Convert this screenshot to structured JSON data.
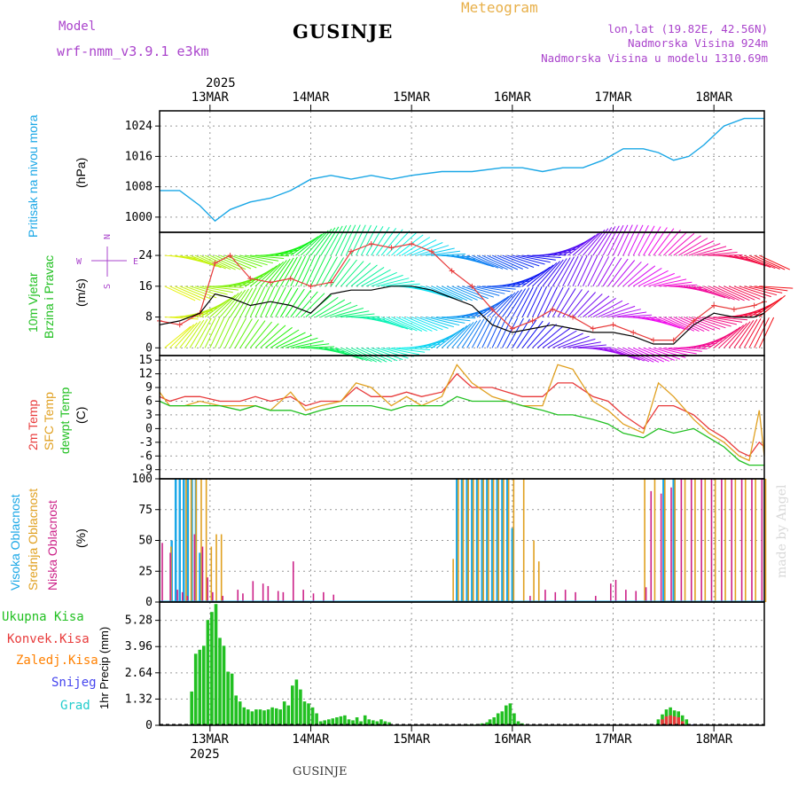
{
  "header": {
    "model_label": "Model",
    "model_name": "wrf-nmm_v3.9.1  e3km",
    "station": "GUSINJE",
    "product": "Meteogram",
    "coords": "lon,lat (19.82E, 42.56N)",
    "elevation": "Nadmorska Visina 924m",
    "model_elevation": "Nadmorska Visina u modelu 1310.69m",
    "year_top": "2025",
    "year_bottom": "2025",
    "footer_station": "GUSINJE",
    "watermark": "made by Angel"
  },
  "colors": {
    "pressure": "#1aa7e6",
    "wind_speed": "#e83b3b",
    "wind_mean": "#000000",
    "t2m": "#e83b3b",
    "tsfc": "#e0a020",
    "dewpt": "#22c022",
    "high_cloud": "#1aa7e6",
    "mid_cloud": "#e0a020",
    "low_cloud": "#cc2288",
    "total_precip": "#22c022",
    "conv_precip": "#e83b3b",
    "frozen_precip": "#ff8000",
    "snow": "#4444ee",
    "hail": "#22cccc",
    "grid": "#999999"
  },
  "chart_data": [
    {
      "id": "pressure",
      "type": "line",
      "title": "Pritisak na nivou mora",
      "ylabel": "(hPa)",
      "ylim": [
        996,
        1028
      ],
      "yticks": [
        1000,
        1008,
        1016,
        1024
      ],
      "x_unit": "day of March 2025",
      "x": [
        12.5,
        12.7,
        12.9,
        13.05,
        13.2,
        13.4,
        13.6,
        13.8,
        14.0,
        14.2,
        14.4,
        14.6,
        14.8,
        15.0,
        15.3,
        15.6,
        15.9,
        16.1,
        16.3,
        16.5,
        16.7,
        16.9,
        17.1,
        17.3,
        17.45,
        17.6,
        17.75,
        17.9,
        18.1,
        18.3,
        18.5
      ],
      "values": [
        1007,
        1007,
        1003,
        999,
        1002,
        1004,
        1005,
        1007,
        1010,
        1011,
        1010,
        1011,
        1010,
        1011,
        1012,
        1012,
        1013,
        1013,
        1012,
        1013,
        1013,
        1015,
        1018,
        1018,
        1017,
        1015,
        1016,
        1019,
        1024,
        1026,
        1026
      ]
    },
    {
      "id": "wind",
      "type": "line",
      "title": "10m Vjetar",
      "subtitle": "Brzina i Pravac",
      "ylabel": "(m/s)",
      "ylim": [
        -2,
        30
      ],
      "yticks": [
        0,
        8,
        16,
        24
      ],
      "compass": {
        "n": "N",
        "w": "W",
        "e": "E",
        "s": "S"
      },
      "x": [
        12.5,
        12.7,
        12.9,
        13.05,
        13.2,
        13.4,
        13.6,
        13.8,
        14.0,
        14.2,
        14.4,
        14.6,
        14.8,
        15.0,
        15.2,
        15.4,
        15.6,
        15.8,
        16.0,
        16.2,
        16.4,
        16.6,
        16.8,
        17.0,
        17.2,
        17.4,
        17.6,
        17.8,
        18.0,
        18.2,
        18.4,
        18.5
      ],
      "series": [
        {
          "name": "gust",
          "values": [
            7,
            6,
            9,
            22,
            24,
            18,
            17,
            18,
            16,
            17,
            25,
            27,
            26,
            27,
            25,
            20,
            16,
            10,
            5,
            7,
            10,
            8,
            5,
            6,
            4,
            2,
            2,
            7,
            11,
            10,
            11,
            12
          ]
        },
        {
          "name": "mean",
          "values": [
            6,
            7,
            9,
            14,
            13,
            11,
            12,
            11,
            9,
            14,
            15,
            15,
            16,
            16,
            15,
            13,
            11,
            6,
            4,
            5,
            6,
            5,
            4,
            4,
            3,
            1,
            1,
            6,
            9,
            8,
            8,
            9
          ]
        }
      ]
    },
    {
      "id": "temperature",
      "type": "line",
      "title": "2m Temp",
      "ylabel": "(C)",
      "ylim": [
        -11,
        16
      ],
      "yticks": [
        -9,
        -6,
        -3,
        0,
        3,
        6,
        9,
        12,
        15
      ],
      "x": [
        12.5,
        12.6,
        12.75,
        12.9,
        13.1,
        13.3,
        13.45,
        13.6,
        13.8,
        13.95,
        14.1,
        14.3,
        14.45,
        14.6,
        14.8,
        14.95,
        15.1,
        15.3,
        15.45,
        15.6,
        15.8,
        15.95,
        16.1,
        16.3,
        16.45,
        16.6,
        16.8,
        16.95,
        17.1,
        17.3,
        17.45,
        17.6,
        17.8,
        17.95,
        18.1,
        18.25,
        18.35,
        18.45,
        18.5
      ],
      "series": [
        {
          "name": "2m Temp",
          "values": [
            7,
            6,
            7,
            7,
            6,
            6,
            7,
            6,
            7,
            5,
            6,
            6,
            9,
            7,
            7,
            8,
            7,
            8,
            12,
            9,
            9,
            8,
            7,
            7,
            10,
            10,
            7,
            6,
            3,
            0,
            5,
            5,
            3,
            0,
            -2,
            -5,
            -6,
            -3,
            -4
          ]
        },
        {
          "name": "SFC Temp",
          "values": [
            8,
            5,
            5,
            6,
            5,
            5,
            5,
            4,
            8,
            4,
            5,
            6,
            10,
            9,
            5,
            7,
            5,
            7,
            14,
            10,
            7,
            6,
            5,
            5,
            14,
            13,
            6,
            4,
            1,
            -1,
            10,
            7,
            2,
            -1,
            -3,
            -6,
            -7,
            4,
            -6
          ]
        },
        {
          "name": "dewpt Temp",
          "values": [
            6,
            5,
            5,
            5,
            5,
            4,
            5,
            4,
            4,
            3,
            4,
            5,
            5,
            5,
            4,
            5,
            5,
            5,
            7,
            6,
            6,
            6,
            5,
            4,
            3,
            3,
            2,
            1,
            -1,
            -2,
            0,
            -1,
            0,
            -2,
            -4,
            -7,
            -8,
            -8,
            -8
          ]
        }
      ]
    },
    {
      "id": "clouds",
      "type": "bar",
      "title": "Oblacnost",
      "titles": [
        "Visoka Oblacnost",
        "Srednja Oblacnost",
        "Niska Oblacnost"
      ],
      "ylabel": "(%)",
      "ylim": [
        0,
        100
      ],
      "yticks": [
        0,
        25,
        50,
        75,
        100
      ],
      "series": [
        {
          "name": "Visoka",
          "x": [
            12.62,
            12.66,
            12.7,
            12.74,
            12.78,
            12.82,
            12.86,
            12.9,
            15.45,
            15.5,
            15.55,
            15.6,
            15.65,
            15.7,
            15.75,
            15.8,
            15.85,
            15.9,
            15.95,
            16.0,
            17.5,
            17.6
          ],
          "values": [
            50,
            100,
            100,
            100,
            100,
            100,
            100,
            40,
            100,
            100,
            100,
            100,
            100,
            100,
            100,
            100,
            100,
            100,
            100,
            60,
            100,
            100
          ]
        },
        {
          "name": "Srednja",
          "x": [
            12.6,
            12.75,
            12.8,
            12.85,
            12.9,
            12.95,
            13.0,
            13.05,
            13.1,
            15.4,
            15.45,
            15.5,
            15.55,
            15.6,
            15.65,
            15.7,
            15.75,
            15.8,
            15.85,
            15.9,
            15.95,
            16.0,
            16.1,
            16.2,
            16.25,
            17.3,
            17.4,
            17.5,
            17.6,
            17.7,
            17.8,
            17.9,
            18.0,
            18.1,
            18.2,
            18.3,
            18.4,
            18.5
          ],
          "values": [
            45,
            100,
            100,
            100,
            100,
            100,
            45,
            55,
            55,
            35,
            100,
            100,
            100,
            100,
            100,
            100,
            100,
            100,
            100,
            100,
            100,
            100,
            100,
            50,
            33,
            100,
            100,
            100,
            100,
            100,
            100,
            100,
            100,
            100,
            100,
            100,
            100,
            100
          ]
        },
        {
          "name": "Niska",
          "x": [
            12.5,
            12.58,
            12.65,
            12.7,
            12.75,
            12.82,
            12.9,
            12.95,
            13.0,
            13.1,
            13.25,
            13.3,
            13.4,
            13.5,
            13.55,
            13.65,
            13.7,
            13.8,
            13.9,
            14.0,
            14.1,
            14.2,
            16.15,
            16.3,
            16.4,
            16.5,
            16.6,
            16.8,
            16.95,
            17.0,
            17.1,
            17.2,
            17.3,
            17.35,
            17.45,
            17.55,
            17.65,
            17.75,
            17.85,
            17.95,
            18.05,
            18.15,
            18.25,
            18.35,
            18.45
          ],
          "values": [
            48,
            40,
            10,
            8,
            5,
            55,
            45,
            20,
            8,
            5,
            10,
            7,
            17,
            15,
            13,
            9,
            8,
            33,
            10,
            7,
            8,
            6,
            5,
            10,
            8,
            10,
            8,
            5,
            15,
            18,
            10,
            9,
            12,
            90,
            88,
            93,
            100,
            100,
            100,
            100,
            100,
            100,
            100,
            100,
            100
          ]
        }
      ]
    },
    {
      "id": "precip",
      "type": "bar",
      "title": "1hr Precip",
      "ylabel": "1hr Precip (mm)",
      "ylim": [
        0,
        6.2
      ],
      "yticks": [
        0,
        1.32,
        2.64,
        3.96,
        5.28
      ],
      "ytick_labels": [
        "0",
        "1.32",
        "2.64",
        "3.96",
        "5.28"
      ],
      "legend": [
        "Ukupna Kisa",
        "Konvek.Kisa",
        "Zaledj.Kisa",
        "Snijeg",
        "Grad"
      ],
      "series": [
        {
          "name": "Ukupna Kisa",
          "x": [
            12.82,
            12.86,
            12.9,
            12.94,
            12.98,
            13.02,
            13.06,
            13.1,
            13.14,
            13.18,
            13.22,
            13.26,
            13.3,
            13.34,
            13.38,
            13.42,
            13.46,
            13.5,
            13.54,
            13.58,
            13.62,
            13.66,
            13.7,
            13.74,
            13.78,
            13.82,
            13.86,
            13.9,
            13.94,
            13.98,
            14.02,
            14.06,
            14.1,
            14.14,
            14.18,
            14.22,
            14.26,
            14.3,
            14.34,
            14.38,
            14.42,
            14.46,
            14.5,
            14.54,
            14.58,
            14.62,
            14.66,
            14.7,
            14.74,
            14.78,
            15.55,
            15.6,
            15.65,
            15.7,
            15.75,
            15.78,
            15.82,
            15.86,
            15.9,
            15.94,
            15.98,
            16.02,
            16.06,
            16.1,
            17.45,
            17.49,
            17.53,
            17.57,
            17.61,
            17.65,
            17.69,
            17.73
          ],
          "values": [
            1.7,
            3.6,
            3.8,
            4.0,
            5.3,
            5.7,
            6.1,
            4.4,
            4.0,
            2.7,
            2.6,
            1.5,
            1.2,
            0.9,
            0.8,
            0.7,
            0.8,
            0.8,
            0.75,
            0.8,
            0.9,
            0.85,
            0.8,
            1.2,
            1.0,
            2.0,
            2.3,
            1.8,
            1.2,
            1.1,
            0.9,
            0.6,
            0.2,
            0.25,
            0.3,
            0.35,
            0.4,
            0.45,
            0.5,
            0.3,
            0.25,
            0.4,
            0.2,
            0.5,
            0.3,
            0.25,
            0.2,
            0.3,
            0.2,
            0.15,
            0.05,
            0.05,
            0.05,
            0.1,
            0.15,
            0.3,
            0.4,
            0.6,
            0.7,
            1.0,
            1.1,
            0.6,
            0.2,
            0.1,
            0.3,
            0.55,
            0.8,
            0.9,
            0.75,
            0.7,
            0.5,
            0.3
          ]
        },
        {
          "name": "Konvek.Kisa",
          "x": [
            17.49,
            17.53,
            17.57,
            17.61,
            17.65,
            17.69
          ],
          "values": [
            0.3,
            0.45,
            0.5,
            0.45,
            0.4,
            0.2
          ]
        },
        {
          "name": "Snijeg",
          "x": [
            17.75,
            17.8,
            17.9,
            18.0
          ],
          "values": [
            0.05,
            0.05,
            0.03,
            0.02
          ]
        }
      ]
    }
  ],
  "xaxis": {
    "start": 12.5,
    "end": 18.5,
    "days": [
      13,
      14,
      15,
      16,
      17,
      18
    ],
    "labels": [
      "13MAR",
      "14MAR",
      "15MAR",
      "16MAR",
      "17MAR",
      "18MAR"
    ]
  },
  "legends": {
    "wind_title": "10m Vjetar",
    "wind_sub": "Brzina i Pravac",
    "t2m": "2m Temp",
    "tsfc": "SFC Temp",
    "dewpt": "dewpt Temp",
    "high_cloud": "Visoka Oblacnost",
    "mid_cloud": "Srednja Oblacnost",
    "low_cloud": "Niska Oblacnost",
    "total_precip": "Ukupna Kisa",
    "conv_precip": "Konvek.Kisa",
    "frozen_precip": "Zaledj.Kisa",
    "snow": "Snijeg",
    "hail": "Grad"
  },
  "units": {
    "pressure": "(hPa)",
    "wind": "(m/s)",
    "temp": "(C)",
    "clouds": "(%)",
    "precip": "1hr Precip (mm)"
  }
}
